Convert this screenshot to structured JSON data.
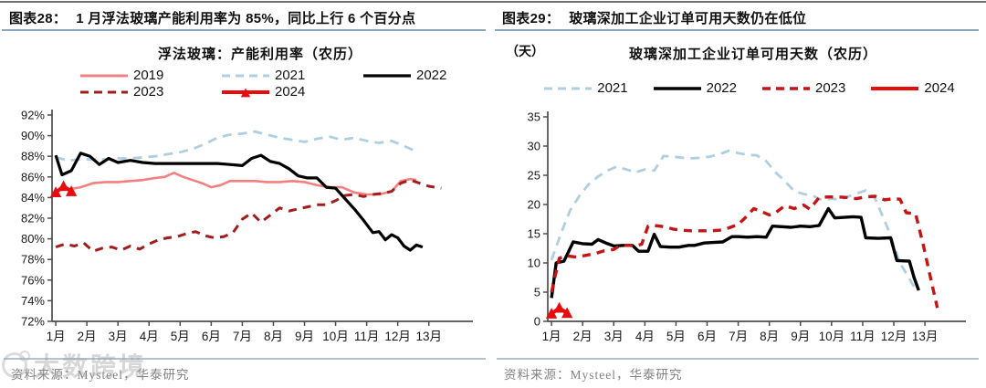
{
  "watermark": {
    "text": "大数跨境"
  },
  "figures": [
    {
      "label": "图表28：",
      "headline": "1 月浮法玻璃产能利用率为 85%，同比上行 6 个百分点",
      "source": "资料来源：Mysteel，华泰研究"
    },
    {
      "label": "图表29：",
      "headline": "玻璃深加工企业订单可用天数仍在低位",
      "source": "资料来源：Mysteel，华泰研究"
    }
  ],
  "chart_data": [
    {
      "type": "line",
      "title": "浮法玻璃：产能利用率（农历）",
      "xlabel": "",
      "ylabel": "",
      "ylim": [
        72,
        92
      ],
      "xlim": [
        0.88,
        14.3
      ],
      "grid": false,
      "legend_position": "top",
      "yticks": {
        "values": [
          92,
          90,
          88,
          86,
          84,
          82,
          80,
          78,
          76,
          74,
          72
        ],
        "labels": [
          "92%",
          "90%",
          "88%",
          "86%",
          "84%",
          "82%",
          "80%",
          "78%",
          "76%",
          "74%",
          "72%"
        ]
      },
      "xticks": {
        "values": [
          1,
          2,
          3,
          4,
          5,
          6,
          7,
          8,
          9,
          10,
          11,
          12,
          13
        ],
        "labels": [
          "1月",
          "2月",
          "3月",
          "4月",
          "5月",
          "6月",
          "7月",
          "8月",
          "9月",
          "10月",
          "11月",
          "12月",
          "13月"
        ]
      },
      "series": [
        {
          "name": "2019",
          "color": "#f28080",
          "dash": "",
          "width": 2.6,
          "x": [
            1,
            1.4,
            1.8,
            2.2,
            2.6,
            3,
            3.4,
            3.8,
            4.2,
            4.5,
            4.8,
            5.1,
            5.4,
            5.7,
            6,
            6.3,
            6.6,
            7,
            7.4,
            7.8,
            8.2,
            8.6,
            9,
            9.4,
            9.8,
            10.2,
            10.6,
            11,
            11.4,
            11.8,
            12.1,
            12.4,
            12.6
          ],
          "y": [
            84.7,
            84.8,
            85.0,
            85.4,
            85.5,
            85.5,
            85.6,
            85.7,
            85.9,
            86.0,
            86.4,
            86.0,
            85.7,
            85.4,
            85.0,
            85.2,
            85.6,
            85.6,
            85.6,
            85.5,
            85.5,
            85.6,
            85.5,
            85.2,
            85.0,
            85.0,
            84.5,
            84.3,
            84.3,
            84.6,
            85.6,
            85.8,
            85.7
          ]
        },
        {
          "name": "2021",
          "color": "#aecfe0",
          "dash": "10 7",
          "width": 2.8,
          "x": [
            1,
            1.4,
            1.8,
            2.2,
            2.6,
            3,
            3.4,
            3.8,
            4.2,
            4.6,
            5,
            5.4,
            5.8,
            6.2,
            6.6,
            7,
            7.4,
            7.8,
            8.2,
            8.6,
            9,
            9.4,
            9.8,
            10.2,
            10.6,
            11,
            11.4,
            11.8,
            12.2,
            12.5
          ],
          "y": [
            87.9,
            87.6,
            87.7,
            87.7,
            87.7,
            87.8,
            87.8,
            87.9,
            88.0,
            88.2,
            88.4,
            88.7,
            89.2,
            89.8,
            90.1,
            90.2,
            90.4,
            90.1,
            89.8,
            89.6,
            89.4,
            89.7,
            89.9,
            89.6,
            89.8,
            89.5,
            89.3,
            89.5,
            89.0,
            88.6
          ]
        },
        {
          "name": "2022",
          "color": "#000000",
          "dash": "",
          "width": 3.2,
          "x": [
            1,
            1.2,
            1.5,
            1.8,
            2.1,
            2.4,
            2.7,
            3,
            3.4,
            3.8,
            4.2,
            4.6,
            5,
            5.4,
            5.8,
            6.2,
            6.6,
            7,
            7.3,
            7.6,
            7.9,
            8.2,
            8.5,
            8.8,
            9.1,
            9.4,
            9.7,
            10,
            10.3,
            10.6,
            10.9,
            11.2,
            11.4,
            11.6,
            11.8,
            12,
            12.2,
            12.4,
            12.6,
            12.8
          ],
          "y": [
            88.1,
            86.2,
            86.6,
            88.3,
            88.0,
            87.2,
            87.8,
            87.4,
            87.6,
            87.4,
            87.3,
            87.3,
            87.3,
            87.3,
            87.3,
            87.3,
            87.2,
            87.1,
            87.8,
            88.1,
            87.5,
            87.3,
            86.8,
            86.1,
            85.9,
            85.9,
            85.0,
            84.9,
            83.9,
            82.9,
            81.8,
            80.6,
            80.7,
            79.9,
            80.4,
            80.1,
            79.3,
            78.9,
            79.4,
            79.2
          ]
        },
        {
          "name": "2023",
          "color": "#a11d1d",
          "dash": "9 7",
          "width": 3,
          "x": [
            1,
            1.3,
            1.6,
            1.9,
            2.2,
            2.5,
            2.8,
            3.1,
            3.4,
            3.7,
            4,
            4.3,
            4.6,
            4.9,
            5.2,
            5.5,
            5.8,
            6.1,
            6.4,
            6.7,
            7,
            7.3,
            7.6,
            7.9,
            8.2,
            8.5,
            8.8,
            9.1,
            9.4,
            9.7,
            10,
            10.3,
            10.6,
            10.9,
            11.2,
            11.5,
            11.8,
            12.1,
            12.4,
            12.7,
            13,
            13.2,
            13.4
          ],
          "y": [
            79.2,
            79.5,
            79.3,
            79.6,
            78.8,
            79.1,
            79.2,
            78.9,
            79.3,
            79.0,
            79.5,
            79.9,
            80.1,
            80.2,
            80.5,
            80.7,
            80.3,
            80.1,
            80.2,
            80.6,
            81.9,
            82.5,
            81.6,
            82.3,
            83.0,
            82.7,
            82.9,
            83.1,
            83.3,
            83.3,
            83.7,
            84.2,
            84.3,
            84.1,
            84.3,
            84.4,
            84.6,
            85.4,
            85.7,
            85.4,
            85.1,
            85.0,
            84.9
          ]
        },
        {
          "name": "2024",
          "color": "#e80c0c",
          "dash": "",
          "width": 4,
          "marker": "triangle",
          "legend_triangle": true,
          "x": [
            1,
            1.25,
            1.5
          ],
          "y": [
            84.5,
            85.1,
            84.6
          ]
        }
      ]
    },
    {
      "type": "line",
      "title": "玻璃深加工企业订单可用天数（农历）",
      "unit": "（天）",
      "xlabel": "",
      "ylabel": "天",
      "ylim": [
        0,
        35
      ],
      "xlim": [
        0.88,
        14.2
      ],
      "grid": false,
      "legend_position": "top",
      "yticks": {
        "values": [
          35,
          30,
          25,
          20,
          15,
          10,
          5,
          0
        ],
        "labels": [
          "35",
          "30",
          "25",
          "20",
          "15",
          "10",
          "5",
          "0"
        ]
      },
      "xticks": {
        "values": [
          1,
          2,
          3,
          4,
          5,
          6,
          7,
          8,
          9,
          10,
          11,
          12,
          13
        ],
        "labels": [
          "1月",
          "2月",
          "3月",
          "4月",
          "5月",
          "6月",
          "7月",
          "8月",
          "9月",
          "10月",
          "11月",
          "12月",
          "13月"
        ]
      },
      "series": [
        {
          "name": "2021",
          "color": "#aecfe0",
          "dash": "10 7",
          "width": 2.8,
          "x": [
            1,
            1.3,
            1.6,
            1.9,
            2.2,
            2.5,
            2.8,
            3.1,
            3.4,
            3.7,
            4,
            4.3,
            4.6,
            4.9,
            5.2,
            5.5,
            5.8,
            6.1,
            6.4,
            6.7,
            7,
            7.3,
            7.6,
            7.9,
            8.2,
            8.5,
            8.8,
            9.1,
            9.4,
            9.7,
            10,
            10.3,
            10.6,
            11.1,
            11.4,
            11.8,
            12.2,
            12.7
          ],
          "y": [
            10.5,
            15,
            19,
            21.5,
            23.5,
            24.8,
            25.8,
            26.5,
            26.0,
            25.5,
            26.0,
            25.8,
            28.3,
            28.2,
            28.0,
            27.9,
            28.0,
            28.2,
            28.6,
            29.2,
            28.8,
            28.5,
            28.4,
            27.4,
            25.5,
            24.0,
            22.3,
            21.8,
            21.5,
            20.7,
            21.0,
            20.8,
            21.5,
            22.4,
            21.0,
            16.0,
            10.0,
            5.5
          ]
        },
        {
          "name": "2022",
          "color": "#000000",
          "dash": "",
          "width": 3.4,
          "x": [
            1,
            1.15,
            1.4,
            1.7,
            2,
            2.3,
            2.5,
            2.8,
            3,
            3.3,
            3.6,
            3.8,
            4.1,
            4.3,
            4.5,
            4.8,
            5.1,
            5.4,
            5.6,
            5.9,
            6.2,
            6.5,
            6.8,
            7,
            7.3,
            7.6,
            7.9,
            8.1,
            8.4,
            8.7,
            9,
            9.3,
            9.6,
            9.9,
            10.1,
            10.4,
            10.7,
            10.95,
            11.1,
            11.5,
            11.9,
            12.1,
            12.5,
            12.65,
            12.8
          ],
          "y": [
            4,
            10,
            10.3,
            13.6,
            13.3,
            13.2,
            14.0,
            13.3,
            12.9,
            13.0,
            13.0,
            12.0,
            12.0,
            14.9,
            12.8,
            12.7,
            12.7,
            13.0,
            13.0,
            13.4,
            13.5,
            13.6,
            14.5,
            14.5,
            14.4,
            14.5,
            14.4,
            16.3,
            16.2,
            16.1,
            16.3,
            16.2,
            16.4,
            19.3,
            17.7,
            17.8,
            17.9,
            17.8,
            14.3,
            14.2,
            14.3,
            10.4,
            10.3,
            7.5,
            5.3
          ]
        },
        {
          "name": "2023",
          "color": "#c41414",
          "dash": "9 7",
          "width": 3.4,
          "x": [
            1,
            1.25,
            1.5,
            1.8,
            2.1,
            2.4,
            2.7,
            3,
            3.2,
            3.5,
            3.7,
            3.9,
            4.1,
            4.3,
            4.6,
            4.9,
            5.2,
            5.5,
            5.8,
            6.1,
            6.4,
            6.7,
            7,
            7.2,
            7.5,
            7.7,
            8,
            8.2,
            8.5,
            8.8,
            9.1,
            9.3,
            9.6,
            9.9,
            10.2,
            10.5,
            10.8,
            11.1,
            11.4,
            11.7,
            12,
            12.2,
            12.4,
            12.7,
            12.95,
            13.2,
            13.4
          ],
          "y": [
            5,
            10.8,
            11.2,
            11.0,
            11.3,
            11.6,
            12.1,
            12.3,
            13.0,
            13.0,
            12.9,
            13.2,
            16.3,
            16.4,
            16.2,
            15.8,
            15.6,
            15.5,
            15.5,
            15.5,
            15.6,
            16.0,
            16.6,
            17.6,
            19.3,
            18.9,
            18.2,
            18.6,
            19.8,
            19.3,
            19.9,
            19.2,
            21.2,
            21.3,
            21.3,
            21.2,
            21.0,
            21.3,
            21.4,
            20.8,
            21.0,
            20.9,
            18.6,
            18.4,
            13.0,
            7.0,
            2.3
          ]
        },
        {
          "name": "2024",
          "color": "#e80c0c",
          "dash": "",
          "width": 4,
          "marker": "triangle",
          "x": [
            1,
            1.25,
            1.5
          ],
          "y": [
            1.3,
            2.3,
            1.4
          ]
        }
      ]
    }
  ]
}
